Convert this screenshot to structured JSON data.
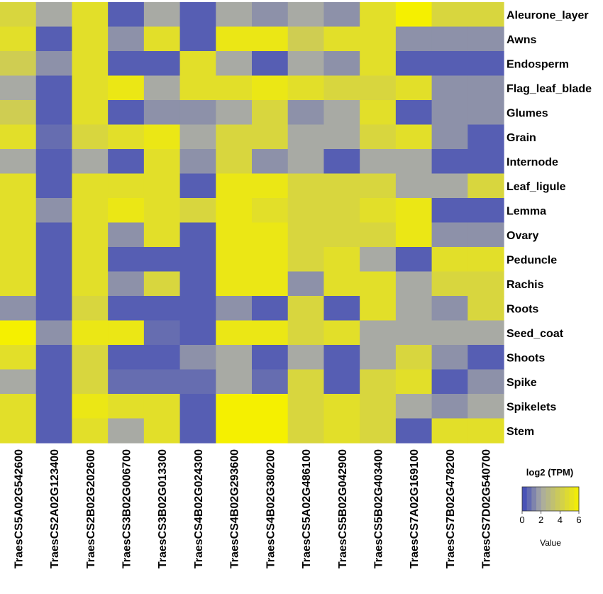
{
  "chart_data": {
    "type": "heatmap",
    "rows": [
      "Aleurone_layer",
      "Awns",
      "Endosperm",
      "Flag_leaf_blade",
      "Glumes",
      "Grain",
      "Internode",
      "Leaf_ligule",
      "Lemma",
      "Ovary",
      "Peduncle",
      "Rachis",
      "Roots",
      "Seed_coat",
      "Shoots",
      "Spike",
      "Spikelets",
      "Stem"
    ],
    "columns": [
      "TraesCS5A02G542600",
      "TraesCS2A02G123400",
      "TraesCS2B02G202600",
      "TraesCS3B02G006700",
      "TraesCS3B02G013300",
      "TraesCS4B02G024300",
      "TraesCS4B02G293600",
      "TraesCS4B02G380200",
      "TraesCS5A02G486100",
      "TraesCS5B02G042900",
      "TraesCS5B02G403400",
      "TraesCS7A02G169100",
      "TraesCS7B02G478200",
      "TraesCS7D02G540700"
    ],
    "values": [
      [
        4.5,
        2.0,
        5.0,
        0.5,
        2.0,
        0.5,
        2.0,
        1.5,
        2.0,
        1.5,
        5.0,
        6.0,
        4.5,
        4.5
      ],
      [
        5.0,
        0.5,
        5.0,
        1.5,
        5.0,
        0.5,
        5.5,
        5.5,
        4.0,
        5.0,
        5.0,
        1.5,
        1.5,
        1.5
      ],
      [
        4.0,
        1.5,
        5.0,
        0.5,
        0.5,
        5.0,
        2.0,
        0.5,
        2.0,
        1.5,
        5.0,
        0.5,
        0.5,
        0.5
      ],
      [
        2.0,
        0.5,
        5.0,
        5.5,
        2.0,
        5.0,
        5.0,
        5.5,
        5.0,
        4.5,
        4.5,
        5.0,
        1.5,
        1.5
      ],
      [
        4.0,
        0.5,
        5.0,
        0.5,
        1.5,
        1.5,
        2.0,
        4.5,
        1.5,
        2.0,
        5.0,
        0.5,
        1.5,
        1.5
      ],
      [
        5.0,
        0.8,
        4.5,
        5.0,
        5.5,
        2.0,
        4.5,
        4.5,
        2.0,
        2.0,
        4.5,
        5.0,
        1.5,
        0.5
      ],
      [
        2.0,
        0.5,
        2.0,
        0.5,
        5.0,
        1.5,
        4.5,
        1.5,
        2.0,
        0.5,
        2.0,
        2.0,
        0.5,
        0.5
      ],
      [
        5.0,
        0.5,
        5.0,
        5.0,
        5.0,
        0.5,
        5.5,
        5.5,
        4.5,
        4.5,
        4.5,
        2.0,
        2.0,
        4.5
      ],
      [
        5.0,
        1.5,
        5.0,
        5.5,
        5.0,
        4.5,
        5.5,
        5.0,
        4.5,
        4.5,
        5.0,
        5.5,
        0.5,
        0.5
      ],
      [
        5.0,
        0.5,
        5.0,
        1.5,
        5.0,
        0.5,
        5.5,
        5.5,
        4.5,
        4.5,
        4.5,
        5.5,
        1.5,
        1.5
      ],
      [
        5.0,
        0.5,
        5.0,
        0.5,
        0.5,
        0.5,
        5.5,
        5.5,
        4.5,
        5.0,
        2.0,
        0.5,
        5.0,
        5.0
      ],
      [
        5.0,
        0.5,
        5.0,
        1.5,
        4.5,
        0.5,
        5.5,
        5.5,
        1.5,
        5.0,
        5.0,
        2.0,
        4.5,
        4.5
      ],
      [
        1.5,
        0.5,
        4.5,
        0.5,
        0.5,
        0.5,
        1.5,
        0.5,
        4.5,
        0.5,
        5.0,
        2.0,
        1.5,
        4.5
      ],
      [
        6.0,
        1.5,
        5.5,
        5.5,
        0.8,
        0.5,
        5.5,
        5.5,
        4.5,
        5.0,
        2.0,
        2.0,
        2.0,
        2.0
      ],
      [
        5.0,
        0.5,
        4.5,
        0.5,
        0.5,
        1.5,
        2.0,
        0.5,
        2.0,
        0.5,
        2.0,
        4.5,
        1.5,
        0.5
      ],
      [
        2.0,
        0.5,
        4.5,
        0.8,
        0.8,
        0.8,
        2.0,
        0.8,
        4.5,
        0.5,
        4.5,
        5.0,
        0.5,
        1.5
      ],
      [
        5.0,
        0.5,
        5.5,
        5.0,
        5.0,
        0.5,
        6.0,
        6.0,
        4.5,
        5.0,
        4.5,
        2.0,
        1.5,
        2.0
      ],
      [
        5.0,
        0.5,
        5.0,
        2.0,
        5.0,
        0.5,
        6.0,
        6.0,
        4.5,
        5.0,
        4.5,
        0.5,
        5.0,
        5.0
      ]
    ],
    "legend": {
      "title": "log2 (TPM)",
      "caption": "Value",
      "ticks": [
        0,
        2,
        4,
        6
      ],
      "range": [
        0,
        6
      ],
      "placement": "bottom-right"
    },
    "colors": {
      "low": "#3a45b8",
      "mid": "#a8aaa4",
      "high": "#f5f000"
    }
  }
}
